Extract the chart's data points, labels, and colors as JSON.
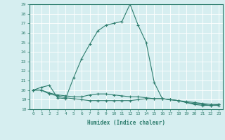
{
  "xlabel": "Humidex (Indice chaleur)",
  "x": [
    0,
    1,
    2,
    3,
    4,
    5,
    6,
    7,
    8,
    9,
    10,
    11,
    12,
    13,
    14,
    15,
    16,
    17,
    18,
    19,
    20,
    21,
    22,
    23
  ],
  "line1_y": [
    20.0,
    20.3,
    20.5,
    19.2,
    19.1,
    21.3,
    23.3,
    24.8,
    26.2,
    26.8,
    27.0,
    27.2,
    29.0,
    26.8,
    25.0,
    20.8,
    19.1,
    19.0,
    18.9,
    18.7,
    18.5,
    18.4,
    18.4,
    18.5
  ],
  "line2_y": [
    20.0,
    20.0,
    19.7,
    19.5,
    19.4,
    19.3,
    19.3,
    19.5,
    19.6,
    19.6,
    19.5,
    19.4,
    19.3,
    19.3,
    19.2,
    19.1,
    19.1,
    19.0,
    18.9,
    18.8,
    18.7,
    18.6,
    18.5,
    18.5
  ],
  "line3_y": [
    20.0,
    20.0,
    19.6,
    19.4,
    19.2,
    19.1,
    19.0,
    18.9,
    18.9,
    18.9,
    18.9,
    18.9,
    18.9,
    19.0,
    19.1,
    19.1,
    19.1,
    19.0,
    18.9,
    18.7,
    18.6,
    18.5,
    18.4,
    18.4
  ],
  "color": "#2e7d6e",
  "bg_color": "#d6eef0",
  "grid_color": "#ffffff",
  "ylim": [
    18,
    29
  ],
  "xlim": [
    -0.5,
    23.5
  ],
  "yticks": [
    18,
    19,
    20,
    21,
    22,
    23,
    24,
    25,
    26,
    27,
    28,
    29
  ],
  "xticks": [
    0,
    1,
    2,
    3,
    4,
    5,
    6,
    7,
    8,
    9,
    10,
    11,
    12,
    13,
    14,
    15,
    16,
    17,
    18,
    19,
    20,
    21,
    22,
    23
  ]
}
